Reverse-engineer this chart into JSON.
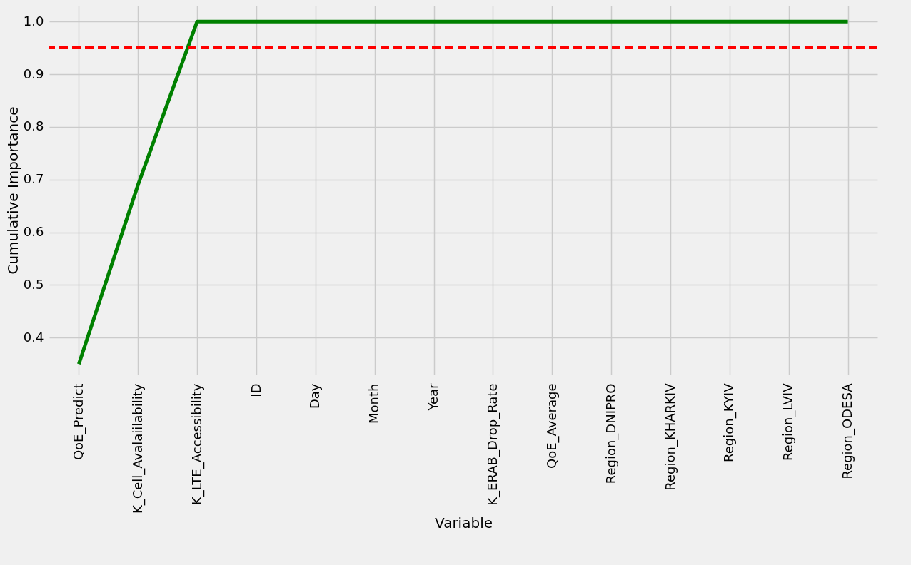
{
  "chart_data": {
    "type": "line",
    "xlabel": "Variable",
    "ylabel": "Cumulative Importance",
    "categories": [
      "QoE_Predict",
      "K_Cell_Avalaiilability",
      "K_LTE_Accessibility",
      "ID",
      "Day",
      "Month",
      "Year",
      "K_ERAB_Drop_Rate",
      "QoE_Average",
      "Region_DNIPRO",
      "Region_KHARKIV",
      "Region_KYIV",
      "Region_LVIV",
      "Region_ODESA"
    ],
    "series": [
      {
        "color": "#008000",
        "values": [
          0.35,
          0.69,
          1.0,
          1.0,
          1.0,
          1.0,
          1.0,
          1.0,
          1.0,
          1.0,
          1.0,
          1.0,
          1.0,
          1.0
        ]
      }
    ],
    "ylim": [
      0.33,
      1.03
    ],
    "yticks": [
      0.4,
      0.5,
      0.6,
      0.7,
      0.8,
      0.9,
      {
        "value": 1,
        "label": "1.0"
      }
    ],
    "ref_lines": [
      {
        "axis": "y",
        "value": 0.95,
        "color": "#ff0000",
        "line_style": "dashed"
      }
    ],
    "grid": true,
    "marker": "none",
    "line_style": "solid"
  }
}
